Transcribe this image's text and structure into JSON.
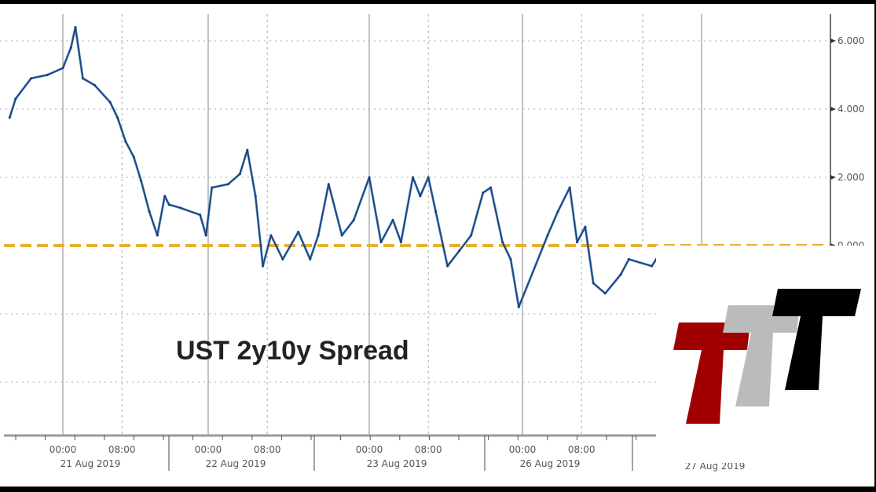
{
  "chart_data": {
    "type": "line",
    "title": "UST 2y10y Spread",
    "xlabel": "",
    "ylabel": "",
    "ylim": [
      -5.5,
      6.8
    ],
    "yticks": [
      "6.000",
      "4.000",
      "2.000",
      "0.000"
    ],
    "ytick_values": [
      6,
      4,
      2,
      0
    ],
    "grid_values": [
      6,
      4,
      2,
      -2,
      -4
    ],
    "grid": true,
    "y_axis_side": "right",
    "x_time_ticks": [
      "00:00",
      "08:00"
    ],
    "x_days": [
      "21 Aug 2019",
      "22 Aug 2019",
      "23 Aug 2019",
      "26 Aug 2019",
      "27 Aug 2019"
    ],
    "reference_line": {
      "value": 0,
      "style": "dashed",
      "color": "#e8b030"
    },
    "series_color": "#1c3f73",
    "series_highlight_color": "#3a7cc4",
    "points": [
      [
        "2019-08-20T16:48",
        3.75
      ],
      [
        "2019-08-20T17:36",
        4.3
      ],
      [
        "2019-08-20T19:42",
        4.9
      ],
      [
        "2019-08-20T21:54",
        5.0
      ],
      [
        "2019-08-21T00:00",
        5.2
      ],
      [
        "2019-08-21T01:06",
        5.8
      ],
      [
        "2019-08-21T01:42",
        6.4
      ],
      [
        "2019-08-21T02:42",
        4.9
      ],
      [
        "2019-08-21T04:18",
        4.7
      ],
      [
        "2019-08-21T06:24",
        4.2
      ],
      [
        "2019-08-21T07:24",
        3.75
      ],
      [
        "2019-08-21T08:30",
        3.05
      ],
      [
        "2019-08-21T09:36",
        2.6
      ],
      [
        "2019-08-21T10:36",
        1.9
      ],
      [
        "2019-08-21T11:42",
        1.0
      ],
      [
        "2019-08-21T12:48",
        0.3
      ],
      [
        "2019-08-21T13:48",
        1.45
      ],
      [
        "2019-08-21T18:42",
        1.2
      ],
      [
        "2019-08-21T20:18",
        1.1
      ],
      [
        "2019-08-21T22:54",
        0.9
      ],
      [
        "2019-08-21T23:42",
        0.3
      ],
      [
        "2019-08-22T00:30",
        1.7
      ],
      [
        "2019-08-22T02:42",
        1.8
      ],
      [
        "2019-08-22T04:18",
        2.1
      ],
      [
        "2019-08-22T05:18",
        2.8
      ],
      [
        "2019-08-22T06:24",
        1.45
      ],
      [
        "2019-08-22T07:24",
        -0.6
      ],
      [
        "2019-08-22T08:30",
        0.3
      ],
      [
        "2019-08-22T10:06",
        -0.4
      ],
      [
        "2019-08-22T12:12",
        0.4
      ],
      [
        "2019-08-22T13:48",
        -0.4
      ],
      [
        "2019-08-22T17:06",
        0.3
      ],
      [
        "2019-08-22T18:30",
        1.8
      ],
      [
        "2019-08-22T20:18",
        0.3
      ],
      [
        "2019-08-22T21:54",
        0.75
      ],
      [
        "2019-08-23T00:00",
        2.0
      ],
      [
        "2019-08-23T01:36",
        0.1
      ],
      [
        "2019-08-23T03:12",
        0.75
      ],
      [
        "2019-08-23T04:18",
        0.1
      ],
      [
        "2019-08-23T05:54",
        2.0
      ],
      [
        "2019-08-23T06:54",
        1.45
      ],
      [
        "2019-08-23T08:00",
        2.0
      ],
      [
        "2019-08-23T09:00",
        1.0
      ],
      [
        "2019-08-23T10:36",
        -0.6
      ],
      [
        "2019-08-23T12:12",
        -0.15
      ],
      [
        "2019-08-23T13:48",
        0.3
      ],
      [
        "2019-08-23T15:24",
        1.55
      ],
      [
        "2019-08-25T19:42",
        1.7
      ],
      [
        "2019-08-25T21:18",
        0.1
      ],
      [
        "2019-08-25T22:24",
        -0.4
      ],
      [
        "2019-08-25T23:30",
        -1.8
      ],
      [
        "2019-08-26T03:24",
        0.3
      ],
      [
        "2019-08-26T04:48",
        1.0
      ],
      [
        "2019-08-26T06:24",
        1.7
      ],
      [
        "2019-08-26T07:24",
        0.1
      ],
      [
        "2019-08-26T08:30",
        0.55
      ],
      [
        "2019-08-26T09:36",
        -1.1
      ],
      [
        "2019-08-26T11:12",
        -1.4
      ],
      [
        "2019-08-26T13:18",
        -0.85
      ],
      [
        "2019-08-26T14:24",
        -0.4
      ],
      [
        "2019-08-26T21:18",
        -0.6
      ],
      [
        "2019-08-26T21:54",
        -0.4
      ]
    ]
  },
  "logo": {
    "text": "TTT",
    "colors": [
      "#a00000",
      "#bbbbbb",
      "#000000"
    ]
  }
}
